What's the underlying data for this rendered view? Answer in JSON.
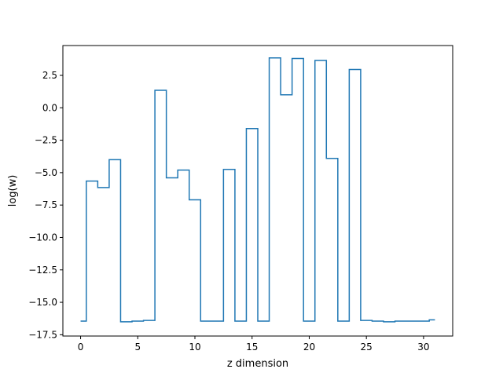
{
  "chart_data": {
    "type": "line",
    "drawstyle": "steps-mid",
    "title": "",
    "xlabel": "z dimension",
    "ylabel": "log(w)",
    "xlim": [
      -1.55,
      32.55
    ],
    "ylim": [
      -17.6,
      4.8
    ],
    "xticks": [
      0,
      5,
      10,
      15,
      20,
      25,
      30
    ],
    "yticks": [
      -17.5,
      -15.0,
      -12.5,
      -10.0,
      -7.5,
      -5.0,
      -2.5,
      0.0,
      2.5
    ],
    "xtick_labels": [
      "0",
      "5",
      "10",
      "15",
      "20",
      "25",
      "30"
    ],
    "ytick_labels": [
      "−17.5",
      "−15.0",
      "−12.5",
      "−10.0",
      "−7.5",
      "−5.0",
      "−2.5",
      "0.0",
      "2.5"
    ],
    "grid": false,
    "colors": {
      "series": "#1f77b4",
      "axes": "#000000",
      "background": "#ffffff"
    },
    "series": [
      {
        "x": [
          0,
          1,
          2,
          3,
          4,
          5,
          6,
          7,
          8,
          9,
          10,
          11,
          12,
          13,
          14,
          15,
          16,
          17,
          18,
          19,
          20,
          21,
          22,
          23,
          24,
          25,
          26,
          27,
          28,
          29,
          30,
          31
        ],
        "values": [
          -16.45,
          -5.65,
          -6.15,
          -4.0,
          -16.5,
          -16.45,
          -16.4,
          1.35,
          -5.4,
          -4.8,
          -7.1,
          -16.45,
          -16.45,
          -4.75,
          -16.45,
          -1.6,
          -16.45,
          3.85,
          1.0,
          3.8,
          -16.45,
          3.65,
          -3.9,
          -16.45,
          2.95,
          -16.4,
          -16.45,
          -16.5,
          -16.45,
          -16.45,
          -16.45,
          -16.35
        ]
      }
    ]
  }
}
